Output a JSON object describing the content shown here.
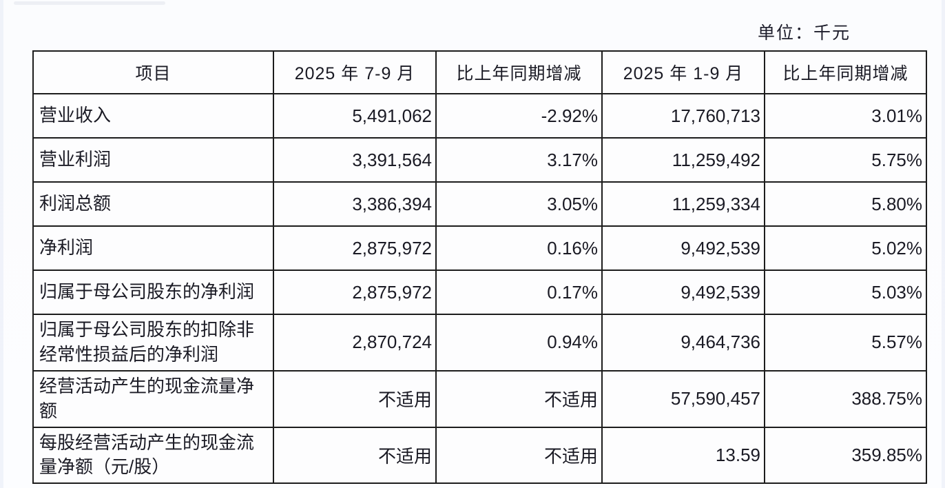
{
  "unit_label": "单位：千元",
  "table": {
    "columns": [
      "项目",
      "2025 年 7-9 月",
      "比上年同期增减",
      "2025 年 1-9 月",
      "比上年同期增减"
    ],
    "rows": [
      {
        "cells": [
          "营业收入",
          "5,491,062",
          "-2.92%",
          "17,760,713",
          "3.01%"
        ]
      },
      {
        "cells": [
          "营业利润",
          "3,391,564",
          "3.17%",
          "11,259,492",
          "5.75%"
        ]
      },
      {
        "cells": [
          "利润总额",
          "3,386,394",
          "3.05%",
          "11,259,334",
          "5.80%"
        ]
      },
      {
        "cells": [
          "净利润",
          "2,875,972",
          "0.16%",
          "9,492,539",
          "5.02%"
        ]
      },
      {
        "cells": [
          "归属于母公司股东的净利润",
          "2,875,972",
          "0.17%",
          "9,492,539",
          "5.03%"
        ]
      },
      {
        "cells": [
          "归属于母公司股东的扣除非经常性损益后的净利润",
          "2,870,724",
          "0.94%",
          "9,464,736",
          "5.57%"
        ]
      },
      {
        "cells": [
          "经营活动产生的现金流量净额",
          "不适用",
          "不适用",
          "57,590,457",
          "388.75%"
        ]
      },
      {
        "cells": [
          "每股经营活动产生的现金流量净额（元/股）",
          "不适用",
          "不适用",
          "13.59",
          "359.85%"
        ]
      }
    ]
  }
}
